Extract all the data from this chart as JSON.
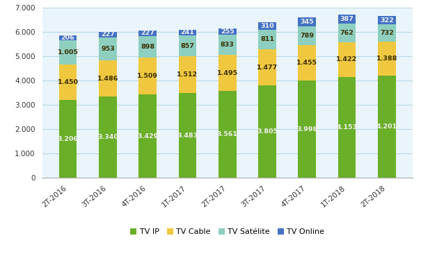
{
  "categories": [
    "2T-2016",
    "3T-2016",
    "4T-2016",
    "1T-2017",
    "2T-2017",
    "3T-2017",
    "4T-2017",
    "1T-2018",
    "2T-2018"
  ],
  "tv_ip": [
    3206,
    3340,
    3429,
    3483,
    3561,
    3805,
    3998,
    4153,
    4201
  ],
  "tv_cable": [
    1450,
    1486,
    1509,
    1512,
    1495,
    1477,
    1455,
    1422,
    1388
  ],
  "tv_satelite": [
    1005,
    953,
    898,
    857,
    833,
    811,
    789,
    762,
    732
  ],
  "tv_online": [
    206,
    227,
    227,
    241,
    255,
    310,
    345,
    387,
    322
  ],
  "tv_ip_color": "#6aaf28",
  "tv_ip_edge_color": "#4a8a10",
  "tv_cable_color": "#f0c840",
  "tv_satelite_color": "#8ecfc0",
  "tv_online_color": "#4472c4",
  "tv_ip_labels": [
    "3.206",
    "3.340",
    "3.429",
    "3.483",
    "3.561",
    "3.805",
    "3.998",
    "4.153",
    "4.201"
  ],
  "tv_cable_labels": [
    "1.450",
    "1.486",
    "1.509",
    "1.512",
    "1.495",
    "1.477",
    "1.455",
    "1.422",
    "1.388"
  ],
  "tv_satelite_labels": [
    "1.005",
    "953",
    "898",
    "857",
    "833",
    "811",
    "789",
    "762",
    "732"
  ],
  "tv_online_labels": [
    "206",
    "227",
    "227",
    "241",
    "255",
    "310",
    "345",
    "387",
    "322"
  ],
  "ylim": [
    0,
    7000
  ],
  "yticks": [
    0,
    1000,
    2000,
    3000,
    4000,
    5000,
    6000,
    7000
  ],
  "ytick_labels": [
    "0",
    "1.000",
    "2.000",
    "3.000",
    "4.000",
    "5.000",
    "6.000",
    "7.000"
  ],
  "legend_labels": [
    "TV IP",
    "TV Cable",
    "TV Satélite",
    "TV Online"
  ],
  "bar_width": 0.45,
  "background_color": "#ffffff",
  "plot_bg_color": "#eaf4fb",
  "grid_color": "#b8d8e8",
  "label_fontsize": 6.8,
  "axis_fontsize": 7.5,
  "legend_fontsize": 8
}
